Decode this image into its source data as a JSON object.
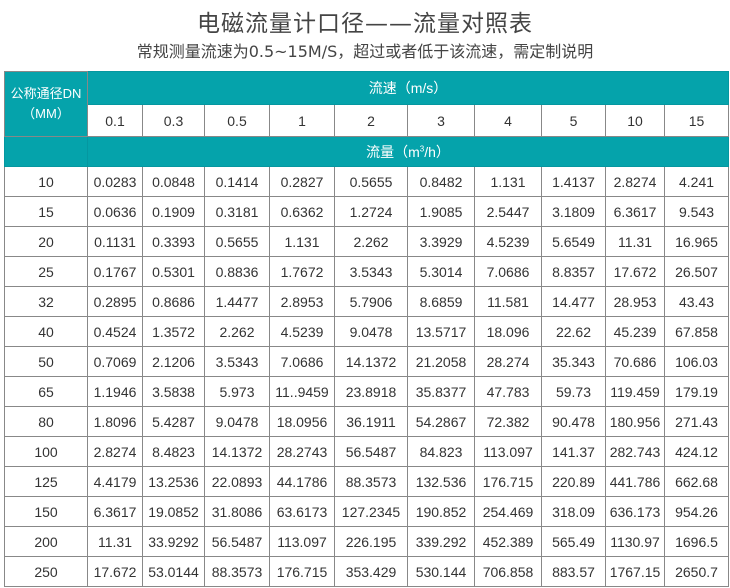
{
  "title": "电磁流量计口径——流量对照表",
  "subtitle": "常规测量流速为0.5~15M/S，超过或者低于该流速，需定制说明",
  "colors": {
    "header_bg": "#05a3ab",
    "header_text": "#ffffff",
    "border": "#888888"
  },
  "table": {
    "dn_header_line1": "公称通径DN",
    "dn_header_line2": "（MM）",
    "speed_header": "流速（m/s）",
    "flow_header_prefix": "流量（m",
    "flow_header_sup": "3",
    "flow_header_suffix": "/h）",
    "speeds": [
      "0.1",
      "0.3",
      "0.5",
      "1",
      "2",
      "3",
      "4",
      "5",
      "10",
      "15"
    ],
    "rows": [
      {
        "dn": "10",
        "values": [
          "0.0283",
          "0.0848",
          "0.1414",
          "0.2827",
          "0.5655",
          "0.8482",
          "1.131",
          "1.4137",
          "2.8274",
          "4.241"
        ]
      },
      {
        "dn": "15",
        "values": [
          "0.0636",
          "0.1909",
          "0.3181",
          "0.6362",
          "1.2724",
          "1.9085",
          "2.5447",
          "3.1809",
          "6.3617",
          "9.543"
        ]
      },
      {
        "dn": "20",
        "values": [
          "0.1131",
          "0.3393",
          "0.5655",
          "1.131",
          "2.262",
          "3.3929",
          "4.5239",
          "5.6549",
          "11.31",
          "16.965"
        ]
      },
      {
        "dn": "25",
        "values": [
          "0.1767",
          "0.5301",
          "0.8836",
          "1.7672",
          "3.5343",
          "5.3014",
          "7.0686",
          "8.8357",
          "17.672",
          "26.507"
        ]
      },
      {
        "dn": "32",
        "values": [
          "0.2895",
          "0.8686",
          "1.4477",
          "2.8953",
          "5.7906",
          "8.6859",
          "11.581",
          "14.477",
          "28.953",
          "43.43"
        ]
      },
      {
        "dn": "40",
        "values": [
          "0.4524",
          "1.3572",
          "2.262",
          "4.5239",
          "9.0478",
          "13.5717",
          "18.096",
          "22.62",
          "45.239",
          "67.858"
        ]
      },
      {
        "dn": "50",
        "values": [
          "0.7069",
          "2.1206",
          "3.5343",
          "7.0686",
          "14.1372",
          "21.2058",
          "28.274",
          "35.343",
          "70.686",
          "106.03"
        ]
      },
      {
        "dn": "65",
        "values": [
          "1.1946",
          "3.5838",
          "5.973",
          "11..9459",
          "23.8918",
          "35.8377",
          "47.783",
          "59.73",
          "119.459",
          "179.19"
        ]
      },
      {
        "dn": "80",
        "values": [
          "1.8096",
          "5.4287",
          "9.0478",
          "18.0956",
          "36.1911",
          "54.2867",
          "72.382",
          "90.478",
          "180.956",
          "271.43"
        ]
      },
      {
        "dn": "100",
        "values": [
          "2.8274",
          "8.4823",
          "14.1372",
          "28.2743",
          "56.5487",
          "84.823",
          "113.097",
          "141.37",
          "282.743",
          "424.12"
        ]
      },
      {
        "dn": "125",
        "values": [
          "4.4179",
          "13.2536",
          "22.0893",
          "44.1786",
          "88.3573",
          "132.536",
          "176.715",
          "220.89",
          "441.786",
          "662.68"
        ]
      },
      {
        "dn": "150",
        "values": [
          "6.3617",
          "19.0852",
          "31.8086",
          "63.6173",
          "127.2345",
          "190.852",
          "254.469",
          "318.09",
          "636.173",
          "954.26"
        ]
      },
      {
        "dn": "200",
        "values": [
          "11.31",
          "33.9292",
          "56.5487",
          "113.097",
          "226.195",
          "339.292",
          "452.389",
          "565.49",
          "1130.97",
          "1696.5"
        ]
      },
      {
        "dn": "250",
        "values": [
          "17.672",
          "53.0144",
          "88.3573",
          "176.715",
          "353.429",
          "530.144",
          "706.858",
          "883.57",
          "1767.15",
          "2650.7"
        ]
      }
    ]
  }
}
